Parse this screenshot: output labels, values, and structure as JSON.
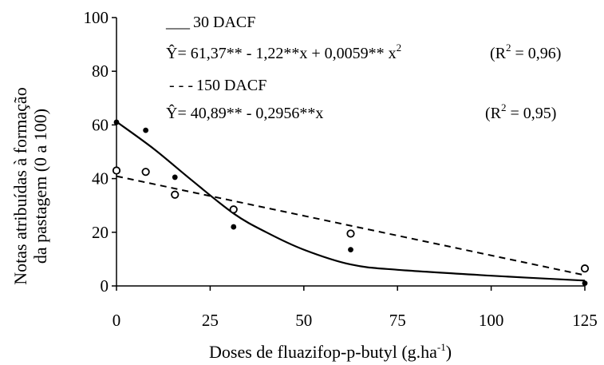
{
  "chart_data": {
    "type": "scatter",
    "xlabel": "Doses de fluazifop-p-butyl (g.ha",
    "xlabel_sup": "-1",
    "xlabel_close": ")",
    "ylabel_line1": "Notas atribuídas à formação",
    "ylabel_line2": "da pastagem (0 a 100)",
    "xlim": [
      0,
      125
    ],
    "ylim": [
      0,
      100
    ],
    "xticks": [
      0,
      25,
      50,
      75,
      100,
      125
    ],
    "yticks": [
      0,
      20,
      40,
      60,
      80,
      100
    ],
    "grid": false,
    "series": [
      {
        "name": "30 DACF",
        "marker": "filled-circle",
        "line_style": "solid",
        "equation": "Ŷ= 61,37** - 1,22**x + 0,0059** x",
        "equation_sup": "2",
        "r2_label": "(R",
        "r2_sup": "2",
        "r2_value": " = 0,96)",
        "x": [
          0,
          7.8,
          15.6,
          31.25,
          62.5,
          125
        ],
        "y": [
          61,
          58,
          40.5,
          22,
          13.5,
          1
        ]
      },
      {
        "name": "150 DACF",
        "marker": "open-circle",
        "line_style": "dashed",
        "equation": "Ŷ= 40,89** - 0,2956**x",
        "r2_label": "(R",
        "r2_sup": "2",
        "r2_value": " = 0,95)",
        "x": [
          0,
          7.8,
          15.6,
          31.25,
          62.5,
          125
        ],
        "y": [
          43,
          42.5,
          34,
          28.5,
          19.5,
          6.5
        ]
      }
    ],
    "legend": {
      "line_glyph_solid": "___",
      "line_glyph_dashed": "- - -"
    }
  }
}
